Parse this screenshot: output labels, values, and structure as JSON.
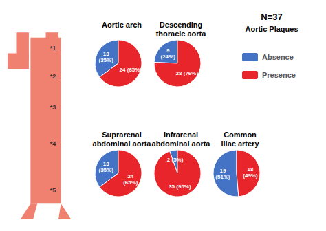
{
  "chart_data": [
    {
      "type": "pie",
      "title": "Aortic arch",
      "categories": [
        "Absence",
        "Presence"
      ],
      "values": [
        13,
        24
      ],
      "value_labels": [
        "13\n(35%)",
        "24 (65%)"
      ],
      "colors": [
        "#4472C4",
        "#E8252A"
      ],
      "data_labels": true,
      "annotations": [
        "*1",
        "N=37",
        "Aortic Plaques"
      ],
      "legend": "right"
    },
    {
      "type": "pie",
      "title": "Descending\nthoracic aorta",
      "categories": [
        "Absence",
        "Presence"
      ],
      "values": [
        9,
        28
      ],
      "value_labels": [
        "9\n(24%)",
        "28 (76%)"
      ],
      "colors": [
        "#4472C4",
        "#E8252A"
      ],
      "data_labels": true,
      "annotations": [
        "*2"
      ]
    },
    {
      "type": "pie",
      "title": "Suprarenal\nabdominal aorta",
      "categories": [
        "Absence",
        "Presence"
      ],
      "values": [
        13,
        24
      ],
      "value_labels": [
        "13\n(35%)",
        "24\n(65%)"
      ],
      "colors": [
        "#4472C4",
        "#E8252A"
      ],
      "data_labels": true,
      "annotations": [
        "*3"
      ]
    },
    {
      "type": "pie",
      "title": "Infrarenal\nabdominal aorta",
      "categories": [
        "Absence",
        "Presence"
      ],
      "values": [
        2,
        35
      ],
      "value_labels": [
        "2 (5%)",
        "35 (95%)"
      ],
      "colors": [
        "#4472C4",
        "#E8252A"
      ],
      "data_labels": true,
      "annotations": [
        "*4"
      ]
    },
    {
      "type": "pie",
      "title": "Common\niliac artery",
      "categories": [
        "Absence",
        "Presence"
      ],
      "values": [
        19,
        18
      ],
      "value_labels": [
        "19\n(51%)",
        "18\n(49%)"
      ],
      "colors": [
        "#4472C4",
        "#E8252A"
      ],
      "data_labels": true,
      "annotations": [
        "*5"
      ]
    }
  ]
}
